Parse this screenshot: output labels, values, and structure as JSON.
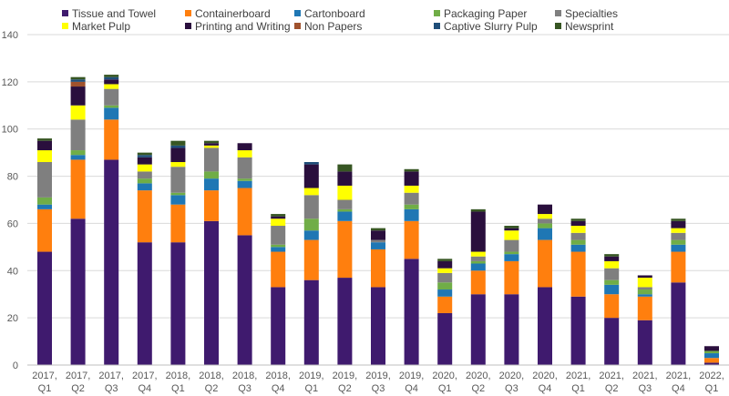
{
  "chart_data": {
    "type": "bar",
    "stacked": true,
    "title": "",
    "xlabel": "",
    "ylabel": "",
    "ylim": [
      0,
      140
    ],
    "yticks": [
      0,
      20,
      40,
      60,
      80,
      100,
      120,
      140
    ],
    "grid": true,
    "legend_position": "top",
    "categories": [
      [
        "2017,",
        "Q1"
      ],
      [
        "2017,",
        "Q2"
      ],
      [
        "2017,",
        "Q3"
      ],
      [
        "2017,",
        "Q4"
      ],
      [
        "2018,",
        "Q1"
      ],
      [
        "2018,",
        "Q2"
      ],
      [
        "2018,",
        "Q3"
      ],
      [
        "2018,",
        "Q4"
      ],
      [
        "2019,",
        "Q1"
      ],
      [
        "2019,",
        "Q2"
      ],
      [
        "2019,",
        "Q3"
      ],
      [
        "2019,",
        "Q4"
      ],
      [
        "2020,",
        "Q1"
      ],
      [
        "2020,",
        "Q2"
      ],
      [
        "2020,",
        "Q3"
      ],
      [
        "2020,",
        "Q4"
      ],
      [
        "2021,",
        "Q1"
      ],
      [
        "2021,",
        "Q2"
      ],
      [
        "2021,",
        "Q3"
      ],
      [
        "2021,",
        "Q4"
      ],
      [
        "2022,",
        "Q1"
      ]
    ],
    "series": [
      {
        "name": "Tissue and Towel",
        "color": "#3f1a6e",
        "values": [
          48,
          62,
          87,
          52,
          52,
          61,
          55,
          33,
          36,
          37,
          33,
          45,
          22,
          30,
          30,
          33,
          29,
          20,
          19,
          35,
          1
        ]
      },
      {
        "name": "Containerboard",
        "color": "#ff7f0e",
        "values": [
          18,
          25,
          17,
          22,
          16,
          13,
          20,
          15,
          17,
          24,
          16,
          16,
          7,
          10,
          14,
          20,
          19,
          10,
          10,
          13,
          2
        ]
      },
      {
        "name": "Cartonboard",
        "color": "#1f77b4",
        "values": [
          2,
          2,
          5,
          3,
          4,
          5,
          3,
          2,
          4,
          4,
          3,
          5,
          3,
          3,
          3,
          5,
          3,
          4,
          1,
          3,
          2
        ]
      },
      {
        "name": "Packaging Paper",
        "color": "#70ad47",
        "values": [
          3,
          2,
          1,
          2,
          1,
          3,
          1,
          1,
          5,
          1,
          0,
          2,
          3,
          1,
          1,
          2,
          2,
          2,
          2,
          2,
          1
        ]
      },
      {
        "name": "Specialties",
        "color": "#7f7f7f",
        "values": [
          15,
          13,
          7,
          3,
          11,
          10,
          9,
          8,
          10,
          4,
          1,
          5,
          4,
          2,
          5,
          2,
          3,
          5,
          1,
          3,
          0
        ]
      },
      {
        "name": "Market Pulp",
        "color": "#ffff00",
        "values": [
          5,
          6,
          2,
          3,
          2,
          1,
          3,
          3,
          3,
          6,
          0,
          3,
          2,
          2,
          4,
          2,
          3,
          3,
          4,
          2,
          0
        ]
      },
      {
        "name": "Printing and Writing",
        "color": "#2a0f3d",
        "values": [
          4,
          8,
          2,
          3,
          6,
          1,
          3,
          1,
          10,
          6,
          4,
          6,
          3,
          17,
          1,
          4,
          2,
          2,
          1,
          3,
          2
        ]
      },
      {
        "name": "Non Papers",
        "color": "#a0522d",
        "values": [
          0,
          2,
          0,
          0,
          0,
          0,
          0,
          0,
          0,
          0,
          0,
          0,
          0,
          0,
          0,
          0,
          0,
          0,
          0,
          0,
          0
        ]
      },
      {
        "name": "Captive Slurry Pulp",
        "color": "#1f4e79",
        "values": [
          0,
          1,
          1,
          1,
          1,
          0,
          0,
          0,
          1,
          0,
          0,
          0,
          0,
          0,
          0,
          0,
          0,
          0,
          0,
          0,
          0
        ]
      },
      {
        "name": "Newsprint",
        "color": "#375623",
        "values": [
          1,
          1,
          1,
          1,
          2,
          1,
          0,
          1,
          0,
          3,
          1,
          1,
          1,
          1,
          1,
          0,
          1,
          1,
          0,
          1,
          0
        ]
      }
    ]
  }
}
